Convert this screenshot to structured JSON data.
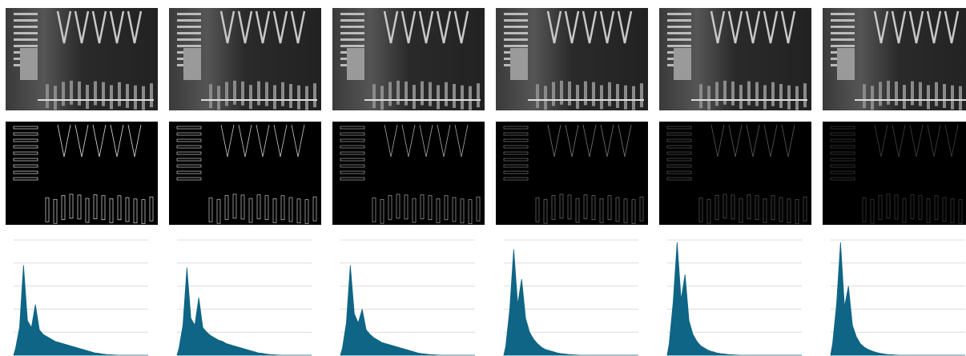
{
  "chart_data": [
    {
      "type": "area",
      "color": "#0e6585",
      "ylim": [
        0,
        5
      ],
      "yticks": [
        1,
        2,
        3,
        4,
        5
      ],
      "grid": true,
      "values": [
        0.3,
        1.2,
        3.9,
        1.5,
        1.2,
        2.2,
        1.1,
        0.9,
        0.8,
        0.7,
        0.6,
        0.55,
        0.5,
        0.45,
        0.4,
        0.35,
        0.3,
        0.25,
        0.2,
        0.15,
        0.1,
        0.08,
        0.05,
        0.03,
        0.02,
        0.01,
        0,
        0,
        0,
        0,
        0,
        0,
        0,
        0
      ]
    },
    {
      "type": "area",
      "color": "#0e6585",
      "ylim": [
        0,
        5
      ],
      "yticks": [
        1,
        2,
        3,
        4,
        5
      ],
      "grid": true,
      "values": [
        0.3,
        1.3,
        3.8,
        1.6,
        1.3,
        2.5,
        1.2,
        1.0,
        0.85,
        0.75,
        0.65,
        0.6,
        0.5,
        0.45,
        0.4,
        0.35,
        0.3,
        0.25,
        0.2,
        0.15,
        0.1,
        0.08,
        0.05,
        0.03,
        0.02,
        0.01,
        0,
        0,
        0,
        0,
        0,
        0,
        0,
        0
      ]
    },
    {
      "type": "area",
      "color": "#0e6585",
      "ylim": [
        0,
        5
      ],
      "yticks": [
        1,
        2,
        3,
        4,
        5
      ],
      "grid": true,
      "values": [
        0.3,
        1.4,
        3.9,
        1.8,
        1.4,
        2.0,
        1.1,
        0.9,
        0.75,
        0.65,
        0.55,
        0.5,
        0.45,
        0.4,
        0.35,
        0.3,
        0.25,
        0.2,
        0.15,
        0.1,
        0.07,
        0.05,
        0.03,
        0.02,
        0.01,
        0,
        0,
        0,
        0,
        0,
        0,
        0,
        0,
        0
      ]
    },
    {
      "type": "area",
      "color": "#0e6585",
      "ylim": [
        0,
        5
      ],
      "yticks": [
        1,
        2,
        3,
        4,
        5
      ],
      "grid": true,
      "values": [
        0.4,
        2.0,
        4.6,
        2.2,
        3.3,
        1.6,
        1.0,
        0.7,
        0.5,
        0.35,
        0.25,
        0.2,
        0.15,
        0.1,
        0.07,
        0.05,
        0.03,
        0.02,
        0.01,
        0,
        0,
        0,
        0,
        0,
        0,
        0,
        0,
        0,
        0,
        0,
        0,
        0,
        0,
        0
      ]
    },
    {
      "type": "area",
      "color": "#0e6585",
      "ylim": [
        0,
        5
      ],
      "yticks": [
        1,
        2,
        3,
        4,
        5
      ],
      "grid": true,
      "values": [
        0.5,
        2.3,
        4.9,
        2.4,
        3.5,
        1.5,
        0.9,
        0.6,
        0.4,
        0.3,
        0.2,
        0.15,
        0.1,
        0.07,
        0.05,
        0.03,
        0.02,
        0.01,
        0,
        0,
        0,
        0,
        0,
        0,
        0,
        0,
        0,
        0,
        0,
        0,
        0,
        0,
        0,
        0
      ]
    },
    {
      "type": "area",
      "color": "#0e6585",
      "ylim": [
        0,
        5
      ],
      "yticks": [
        1,
        2,
        3,
        4,
        5
      ],
      "grid": true,
      "values": [
        0.5,
        2.2,
        4.9,
        2.1,
        3.0,
        1.3,
        0.8,
        0.5,
        0.35,
        0.25,
        0.18,
        0.12,
        0.08,
        0.05,
        0.03,
        0.02,
        0.01,
        0,
        0,
        0,
        0,
        0,
        0,
        0,
        0,
        0,
        0,
        0,
        0,
        0,
        0,
        0,
        0,
        0
      ]
    }
  ]
}
